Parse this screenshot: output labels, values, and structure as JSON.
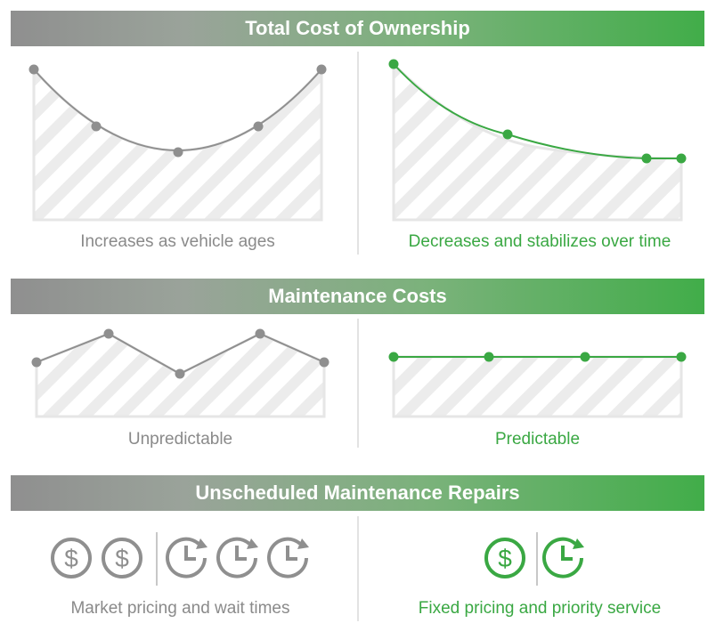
{
  "sections": [
    {
      "title": "Total Cost of Ownership",
      "left": {
        "caption": "Increases as vehicle ages"
      },
      "right": {
        "caption": "Decreases and stabilizes over time"
      }
    },
    {
      "title": "Maintenance Costs",
      "left": {
        "caption": "Unpredictable"
      },
      "right": {
        "caption": "Predictable"
      }
    },
    {
      "title": "Unscheduled Maintenance Repairs",
      "left": {
        "caption": "Market pricing and wait times"
      },
      "right": {
        "caption": "Fixed pricing and priority service"
      }
    }
  ],
  "colors": {
    "gray": "#8f8f8f",
    "green": "#3aa843",
    "hatch": "#e6e6e6"
  },
  "icons": {
    "left": [
      "dollar-icon",
      "dollar-icon",
      "clock-icon",
      "clock-icon",
      "clock-icon"
    ],
    "right": [
      "dollar-icon",
      "clock-icon"
    ]
  }
}
